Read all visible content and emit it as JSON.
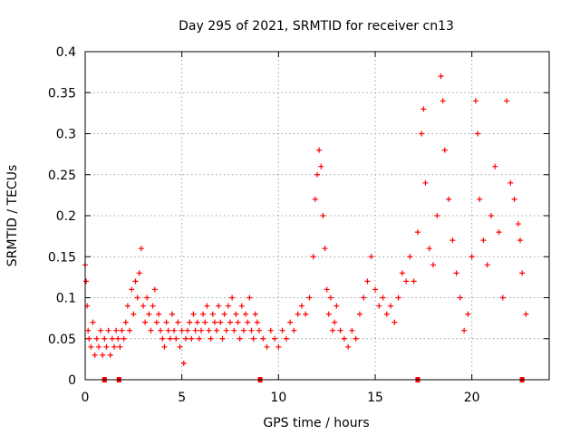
{
  "chart_data": {
    "type": "scatter",
    "title": "Day 295 of 2021, SRMTID for receiver cn13",
    "xlabel": "GPS time / hours",
    "ylabel": "SRMTID / TECUs",
    "xlim": [
      0,
      24
    ],
    "ylim": [
      0,
      0.4
    ],
    "xticks": [
      0,
      5,
      10,
      15,
      20
    ],
    "xtick_labels": [
      "0",
      "5",
      "10",
      "15",
      "20"
    ],
    "yticks": [
      0,
      0.05,
      0.1,
      0.15,
      0.2,
      0.25,
      0.3,
      0.35,
      0.4
    ],
    "ytick_labels": [
      "0",
      "0.05",
      "0.1",
      "0.15",
      "0.2",
      "0.25",
      "0.3",
      "0.35",
      "0.4"
    ],
    "grid": true,
    "marker": "+",
    "color": "#ff0000",
    "series": [
      {
        "name": "SRMTID",
        "points": [
          [
            0.0,
            0.14
          ],
          [
            0.05,
            0.12
          ],
          [
            0.1,
            0.09
          ],
          [
            0.15,
            0.06
          ],
          [
            0.2,
            0.05
          ],
          [
            0.3,
            0.04
          ],
          [
            0.4,
            0.07
          ],
          [
            0.5,
            0.03
          ],
          [
            0.6,
            0.05
          ],
          [
            0.7,
            0.04
          ],
          [
            0.8,
            0.06
          ],
          [
            0.9,
            0.03
          ],
          [
            1.0,
            0.05
          ],
          [
            1.1,
            0.04
          ],
          [
            1.2,
            0.06
          ],
          [
            1.3,
            0.03
          ],
          [
            1.4,
            0.05
          ],
          [
            1.5,
            0.04
          ],
          [
            1.6,
            0.06
          ],
          [
            1.7,
            0.05
          ],
          [
            1.8,
            0.04
          ],
          [
            1.9,
            0.06
          ],
          [
            2.0,
            0.05
          ],
          [
            2.1,
            0.07
          ],
          [
            2.2,
            0.09
          ],
          [
            2.3,
            0.06
          ],
          [
            2.4,
            0.11
          ],
          [
            2.5,
            0.08
          ],
          [
            2.6,
            0.12
          ],
          [
            2.7,
            0.1
          ],
          [
            2.8,
            0.13
          ],
          [
            2.9,
            0.16
          ],
          [
            3.0,
            0.09
          ],
          [
            3.1,
            0.07
          ],
          [
            3.2,
            0.1
          ],
          [
            3.3,
            0.08
          ],
          [
            3.4,
            0.06
          ],
          [
            3.5,
            0.09
          ],
          [
            3.6,
            0.11
          ],
          [
            3.7,
            0.07
          ],
          [
            3.8,
            0.08
          ],
          [
            3.9,
            0.06
          ],
          [
            4.0,
            0.05
          ],
          [
            4.1,
            0.04
          ],
          [
            4.2,
            0.07
          ],
          [
            4.3,
            0.06
          ],
          [
            4.4,
            0.05
          ],
          [
            4.5,
            0.08
          ],
          [
            4.6,
            0.06
          ],
          [
            4.7,
            0.05
          ],
          [
            4.8,
            0.07
          ],
          [
            4.9,
            0.04
          ],
          [
            5.0,
            0.06
          ],
          [
            5.1,
            0.02
          ],
          [
            5.2,
            0.05
          ],
          [
            5.3,
            0.06
          ],
          [
            5.4,
            0.07
          ],
          [
            5.5,
            0.05
          ],
          [
            5.6,
            0.08
          ],
          [
            5.7,
            0.06
          ],
          [
            5.8,
            0.07
          ],
          [
            5.9,
            0.05
          ],
          [
            6.0,
            0.06
          ],
          [
            6.1,
            0.08
          ],
          [
            6.2,
            0.07
          ],
          [
            6.3,
            0.09
          ],
          [
            6.4,
            0.06
          ],
          [
            6.5,
            0.05
          ],
          [
            6.6,
            0.08
          ],
          [
            6.7,
            0.07
          ],
          [
            6.8,
            0.06
          ],
          [
            6.9,
            0.09
          ],
          [
            7.0,
            0.07
          ],
          [
            7.1,
            0.05
          ],
          [
            7.2,
            0.08
          ],
          [
            7.3,
            0.06
          ],
          [
            7.4,
            0.09
          ],
          [
            7.5,
            0.07
          ],
          [
            7.6,
            0.1
          ],
          [
            7.7,
            0.06
          ],
          [
            7.8,
            0.08
          ],
          [
            7.9,
            0.07
          ],
          [
            8.0,
            0.05
          ],
          [
            8.1,
            0.09
          ],
          [
            8.2,
            0.06
          ],
          [
            8.3,
            0.08
          ],
          [
            8.4,
            0.07
          ],
          [
            8.5,
            0.1
          ],
          [
            8.6,
            0.06
          ],
          [
            8.7,
            0.05
          ],
          [
            8.8,
            0.08
          ],
          [
            8.9,
            0.07
          ],
          [
            9.0,
            0.06
          ],
          [
            9.2,
            0.05
          ],
          [
            9.4,
            0.04
          ],
          [
            9.6,
            0.06
          ],
          [
            9.8,
            0.05
          ],
          [
            10.0,
            0.04
          ],
          [
            10.2,
            0.06
          ],
          [
            10.4,
            0.05
          ],
          [
            10.6,
            0.07
          ],
          [
            10.8,
            0.06
          ],
          [
            11.0,
            0.08
          ],
          [
            11.2,
            0.09
          ],
          [
            11.4,
            0.08
          ],
          [
            11.6,
            0.1
          ],
          [
            11.8,
            0.15
          ],
          [
            11.9,
            0.22
          ],
          [
            12.0,
            0.25
          ],
          [
            12.1,
            0.28
          ],
          [
            12.2,
            0.26
          ],
          [
            12.3,
            0.2
          ],
          [
            12.4,
            0.16
          ],
          [
            12.5,
            0.11
          ],
          [
            12.6,
            0.08
          ],
          [
            12.7,
            0.1
          ],
          [
            12.8,
            0.06
          ],
          [
            12.9,
            0.07
          ],
          [
            13.0,
            0.09
          ],
          [
            13.2,
            0.06
          ],
          [
            13.4,
            0.05
          ],
          [
            13.6,
            0.04
          ],
          [
            13.8,
            0.06
          ],
          [
            14.0,
            0.05
          ],
          [
            14.2,
            0.08
          ],
          [
            14.4,
            0.1
          ],
          [
            14.6,
            0.12
          ],
          [
            14.8,
            0.15
          ],
          [
            15.0,
            0.11
          ],
          [
            15.2,
            0.09
          ],
          [
            15.4,
            0.1
          ],
          [
            15.6,
            0.08
          ],
          [
            15.8,
            0.09
          ],
          [
            16.0,
            0.07
          ],
          [
            16.2,
            0.1
          ],
          [
            16.4,
            0.13
          ],
          [
            16.6,
            0.12
          ],
          [
            16.8,
            0.15
          ],
          [
            17.0,
            0.12
          ],
          [
            17.2,
            0.18
          ],
          [
            17.4,
            0.3
          ],
          [
            17.5,
            0.33
          ],
          [
            17.6,
            0.24
          ],
          [
            17.8,
            0.16
          ],
          [
            18.0,
            0.14
          ],
          [
            18.2,
            0.2
          ],
          [
            18.4,
            0.37
          ],
          [
            18.5,
            0.34
          ],
          [
            18.6,
            0.28
          ],
          [
            18.8,
            0.22
          ],
          [
            19.0,
            0.17
          ],
          [
            19.2,
            0.13
          ],
          [
            19.4,
            0.1
          ],
          [
            19.6,
            0.06
          ],
          [
            19.8,
            0.08
          ],
          [
            20.0,
            0.15
          ],
          [
            20.2,
            0.34
          ],
          [
            20.3,
            0.3
          ],
          [
            20.4,
            0.22
          ],
          [
            20.6,
            0.17
          ],
          [
            20.8,
            0.14
          ],
          [
            21.0,
            0.2
          ],
          [
            21.2,
            0.26
          ],
          [
            21.4,
            0.18
          ],
          [
            21.6,
            0.1
          ],
          [
            21.8,
            0.34
          ],
          [
            22.0,
            0.24
          ],
          [
            22.2,
            0.22
          ],
          [
            22.4,
            0.19
          ],
          [
            22.5,
            0.17
          ],
          [
            22.6,
            0.13
          ],
          [
            22.8,
            0.08
          ]
        ]
      }
    ],
    "zero_markers_x": [
      1.0,
      1.75,
      9.05,
      17.2,
      22.6
    ]
  }
}
